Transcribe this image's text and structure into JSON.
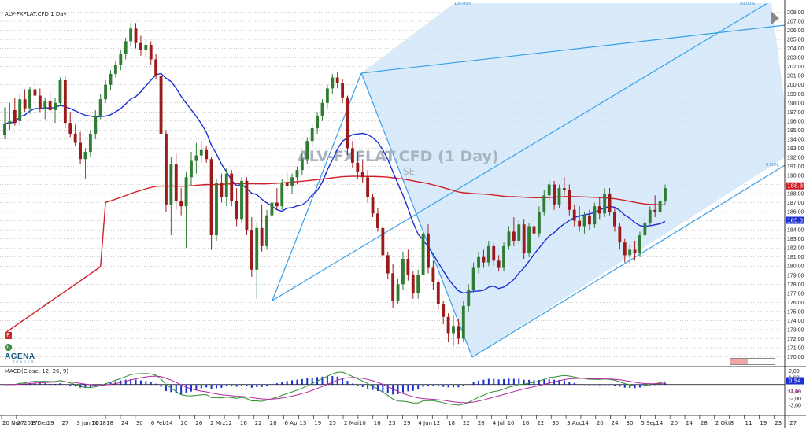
{
  "chart_data": {
    "type": "candlestick",
    "title": "ALV-FXFLAT.CFD 1 Day",
    "watermark": "ALV-FXFLAT.CFD (1 Day)",
    "watermark_sub": "SE",
    "ylim": [
      169,
      209
    ],
    "y_ticks": [
      170,
      171,
      172,
      173,
      174,
      175,
      176,
      177,
      178,
      179,
      180,
      181,
      182,
      183,
      184,
      185,
      186,
      187,
      188,
      189,
      190,
      191,
      192,
      193,
      194,
      195,
      196,
      197,
      198,
      199,
      200,
      201,
      202,
      203,
      204,
      205,
      206,
      207,
      208
    ],
    "x_tick_labels": [
      "20 Nov 2017",
      "27",
      "8 Dez",
      "19",
      "27",
      "3 Jan 2018",
      "10",
      "18",
      "24",
      "30",
      "6 Feb",
      "14",
      "20",
      "26",
      "2 Mrz",
      "12",
      "16",
      "22",
      "28",
      "6 Apr",
      "13",
      "19",
      "25",
      "2 Mai",
      "10",
      "16",
      "23",
      "29",
      "4 Jun",
      "12",
      "18",
      "22",
      "28",
      "4 Jul",
      "10",
      "16",
      "22",
      "30",
      "3 Aug",
      "14",
      "20",
      "24",
      "30",
      "5 Sep",
      "14",
      "20",
      "24",
      "28",
      "2 Okt",
      "8",
      "11",
      "19",
      "23",
      "27"
    ],
    "last_price_label": "188.85",
    "sma_label": "185.05",
    "candles": [
      {
        "o": 194.5,
        "h": 197.5,
        "l": 194.0,
        "c": 195.7
      },
      {
        "o": 195.7,
        "h": 198.0,
        "l": 195.0,
        "c": 196.0
      },
      {
        "o": 197.2,
        "h": 198.5,
        "l": 195.5,
        "c": 195.8
      },
      {
        "o": 196.0,
        "h": 199.0,
        "l": 195.5,
        "c": 198.4
      },
      {
        "o": 198.4,
        "h": 199.5,
        "l": 197.0,
        "c": 197.4
      },
      {
        "o": 197.4,
        "h": 199.8,
        "l": 196.8,
        "c": 199.5
      },
      {
        "o": 199.5,
        "h": 200.5,
        "l": 198.0,
        "c": 198.8
      },
      {
        "o": 198.8,
        "h": 199.6,
        "l": 197.0,
        "c": 197.3
      },
      {
        "o": 197.3,
        "h": 198.6,
        "l": 196.2,
        "c": 198.2
      },
      {
        "o": 198.2,
        "h": 199.2,
        "l": 196.8,
        "c": 197.2
      },
      {
        "o": 197.2,
        "h": 198.5,
        "l": 195.8,
        "c": 198.0
      },
      {
        "o": 198.0,
        "h": 200.8,
        "l": 197.6,
        "c": 200.5
      },
      {
        "o": 200.5,
        "h": 201.0,
        "l": 195.2,
        "c": 195.8
      },
      {
        "o": 195.8,
        "h": 197.0,
        "l": 194.2,
        "c": 194.6
      },
      {
        "o": 194.6,
        "h": 195.6,
        "l": 193.2,
        "c": 193.6
      },
      {
        "o": 193.6,
        "h": 194.8,
        "l": 191.2,
        "c": 191.8
      },
      {
        "o": 191.8,
        "h": 193.0,
        "l": 189.6,
        "c": 192.6
      },
      {
        "o": 192.6,
        "h": 195.0,
        "l": 192.0,
        "c": 194.6
      },
      {
        "o": 194.6,
        "h": 197.2,
        "l": 194.0,
        "c": 196.6
      },
      {
        "o": 196.6,
        "h": 199.0,
        "l": 196.2,
        "c": 198.4
      },
      {
        "o": 198.4,
        "h": 200.5,
        "l": 198.0,
        "c": 200.0
      },
      {
        "o": 200.0,
        "h": 201.6,
        "l": 199.4,
        "c": 201.2
      },
      {
        "o": 201.2,
        "h": 202.6,
        "l": 200.8,
        "c": 202.2
      },
      {
        "o": 202.2,
        "h": 203.8,
        "l": 201.6,
        "c": 203.4
      },
      {
        "o": 203.4,
        "h": 205.2,
        "l": 202.8,
        "c": 204.8
      },
      {
        "o": 204.8,
        "h": 206.8,
        "l": 204.2,
        "c": 206.2
      },
      {
        "o": 206.2,
        "h": 206.8,
        "l": 204.0,
        "c": 204.6
      },
      {
        "o": 204.6,
        "h": 205.4,
        "l": 203.2,
        "c": 203.8
      },
      {
        "o": 203.8,
        "h": 205.0,
        "l": 203.0,
        "c": 204.4
      },
      {
        "o": 204.4,
        "h": 204.8,
        "l": 202.2,
        "c": 202.8
      },
      {
        "o": 202.8,
        "h": 203.4,
        "l": 200.6,
        "c": 201.0
      },
      {
        "o": 201.0,
        "h": 201.6,
        "l": 194.0,
        "c": 194.6
      },
      {
        "o": 194.6,
        "h": 195.0,
        "l": 186.0,
        "c": 186.8
      },
      {
        "o": 186.8,
        "h": 192.0,
        "l": 183.4,
        "c": 191.2
      },
      {
        "o": 191.2,
        "h": 192.4,
        "l": 186.2,
        "c": 187.2
      },
      {
        "o": 187.2,
        "h": 188.6,
        "l": 185.6,
        "c": 186.6
      },
      {
        "o": 186.6,
        "h": 190.4,
        "l": 182.0,
        "c": 189.8
      },
      {
        "o": 189.8,
        "h": 192.6,
        "l": 188.8,
        "c": 191.6
      },
      {
        "o": 191.6,
        "h": 193.6,
        "l": 190.2,
        "c": 192.2
      },
      {
        "o": 192.2,
        "h": 193.8,
        "l": 191.4,
        "c": 192.8
      },
      {
        "o": 192.8,
        "h": 193.2,
        "l": 191.4,
        "c": 191.8
      },
      {
        "o": 191.8,
        "h": 192.0,
        "l": 181.8,
        "c": 183.4
      },
      {
        "o": 183.4,
        "h": 189.6,
        "l": 182.8,
        "c": 189.2
      },
      {
        "o": 189.2,
        "h": 190.2,
        "l": 187.0,
        "c": 187.6
      },
      {
        "o": 187.6,
        "h": 190.8,
        "l": 186.6,
        "c": 190.2
      },
      {
        "o": 190.2,
        "h": 190.6,
        "l": 186.6,
        "c": 187.2
      },
      {
        "o": 187.2,
        "h": 188.6,
        "l": 184.4,
        "c": 185.2
      },
      {
        "o": 185.2,
        "h": 189.8,
        "l": 184.8,
        "c": 189.4
      },
      {
        "o": 189.4,
        "h": 189.8,
        "l": 183.4,
        "c": 184.0
      },
      {
        "o": 184.0,
        "h": 185.4,
        "l": 178.8,
        "c": 179.6
      },
      {
        "o": 179.6,
        "h": 184.8,
        "l": 176.4,
        "c": 184.2
      },
      {
        "o": 184.2,
        "h": 186.8,
        "l": 181.6,
        "c": 182.2
      },
      {
        "o": 182.2,
        "h": 186.2,
        "l": 181.8,
        "c": 185.6
      },
      {
        "o": 185.6,
        "h": 187.6,
        "l": 185.0,
        "c": 187.0
      },
      {
        "o": 187.0,
        "h": 188.6,
        "l": 186.2,
        "c": 186.6
      },
      {
        "o": 186.6,
        "h": 189.6,
        "l": 186.2,
        "c": 189.2
      },
      {
        "o": 189.2,
        "h": 190.4,
        "l": 188.4,
        "c": 188.8
      },
      {
        "o": 188.8,
        "h": 190.2,
        "l": 188.0,
        "c": 189.8
      },
      {
        "o": 189.8,
        "h": 191.0,
        "l": 189.0,
        "c": 190.6
      },
      {
        "o": 190.6,
        "h": 192.4,
        "l": 190.0,
        "c": 191.8
      },
      {
        "o": 191.8,
        "h": 194.2,
        "l": 191.2,
        "c": 193.8
      },
      {
        "o": 193.8,
        "h": 195.6,
        "l": 193.2,
        "c": 195.2
      },
      {
        "o": 195.2,
        "h": 197.0,
        "l": 194.6,
        "c": 196.6
      },
      {
        "o": 196.6,
        "h": 198.4,
        "l": 196.0,
        "c": 198.0
      },
      {
        "o": 198.0,
        "h": 200.0,
        "l": 197.4,
        "c": 199.6
      },
      {
        "o": 199.6,
        "h": 201.2,
        "l": 199.0,
        "c": 200.8
      },
      {
        "o": 200.8,
        "h": 201.4,
        "l": 199.6,
        "c": 200.2
      },
      {
        "o": 200.2,
        "h": 200.6,
        "l": 198.0,
        "c": 198.6
      },
      {
        "o": 198.6,
        "h": 198.8,
        "l": 192.2,
        "c": 193.0
      },
      {
        "o": 193.0,
        "h": 193.8,
        "l": 190.8,
        "c": 191.4
      },
      {
        "o": 191.4,
        "h": 192.6,
        "l": 189.6,
        "c": 190.4
      },
      {
        "o": 190.4,
        "h": 191.8,
        "l": 189.2,
        "c": 189.8
      },
      {
        "o": 189.8,
        "h": 190.6,
        "l": 187.0,
        "c": 187.6
      },
      {
        "o": 187.6,
        "h": 188.0,
        "l": 185.4,
        "c": 185.8
      },
      {
        "o": 185.8,
        "h": 186.4,
        "l": 183.8,
        "c": 184.2
      },
      {
        "o": 184.2,
        "h": 184.6,
        "l": 180.6,
        "c": 181.2
      },
      {
        "o": 181.2,
        "h": 181.6,
        "l": 178.6,
        "c": 179.2
      },
      {
        "o": 179.2,
        "h": 180.2,
        "l": 175.4,
        "c": 176.2
      },
      {
        "o": 176.2,
        "h": 178.6,
        "l": 175.8,
        "c": 178.0
      },
      {
        "o": 178.0,
        "h": 181.6,
        "l": 177.4,
        "c": 180.8
      },
      {
        "o": 180.8,
        "h": 181.8,
        "l": 178.4,
        "c": 179.0
      },
      {
        "o": 179.0,
        "h": 179.4,
        "l": 176.4,
        "c": 177.0
      },
      {
        "o": 177.0,
        "h": 179.6,
        "l": 176.4,
        "c": 179.0
      },
      {
        "o": 179.0,
        "h": 184.0,
        "l": 178.2,
        "c": 183.6
      },
      {
        "o": 183.6,
        "h": 184.6,
        "l": 179.2,
        "c": 179.8
      },
      {
        "o": 179.8,
        "h": 180.6,
        "l": 177.4,
        "c": 178.2
      },
      {
        "o": 178.2,
        "h": 178.6,
        "l": 175.2,
        "c": 175.8
      },
      {
        "o": 175.8,
        "h": 176.2,
        "l": 173.6,
        "c": 174.4
      },
      {
        "o": 174.4,
        "h": 174.8,
        "l": 171.6,
        "c": 172.6
      },
      {
        "o": 172.6,
        "h": 174.6,
        "l": 171.2,
        "c": 173.4
      },
      {
        "o": 173.4,
        "h": 174.2,
        "l": 171.4,
        "c": 172.0
      },
      {
        "o": 172.0,
        "h": 176.2,
        "l": 171.6,
        "c": 175.6
      },
      {
        "o": 175.6,
        "h": 178.0,
        "l": 175.0,
        "c": 177.4
      },
      {
        "o": 177.4,
        "h": 180.4,
        "l": 177.0,
        "c": 179.8
      },
      {
        "o": 179.8,
        "h": 181.6,
        "l": 179.2,
        "c": 181.0
      },
      {
        "o": 181.0,
        "h": 181.8,
        "l": 179.8,
        "c": 180.4
      },
      {
        "o": 180.4,
        "h": 182.8,
        "l": 180.0,
        "c": 182.2
      },
      {
        "o": 182.2,
        "h": 182.6,
        "l": 180.0,
        "c": 180.6
      },
      {
        "o": 180.6,
        "h": 181.2,
        "l": 179.4,
        "c": 179.8
      },
      {
        "o": 179.8,
        "h": 182.6,
        "l": 179.4,
        "c": 182.2
      },
      {
        "o": 182.2,
        "h": 184.4,
        "l": 181.8,
        "c": 183.8
      },
      {
        "o": 183.8,
        "h": 185.4,
        "l": 182.2,
        "c": 182.8
      },
      {
        "o": 182.8,
        "h": 185.0,
        "l": 182.4,
        "c": 184.6
      },
      {
        "o": 184.6,
        "h": 185.2,
        "l": 180.8,
        "c": 181.4
      },
      {
        "o": 181.4,
        "h": 184.8,
        "l": 181.0,
        "c": 184.4
      },
      {
        "o": 184.4,
        "h": 185.6,
        "l": 183.0,
        "c": 183.6
      },
      {
        "o": 183.6,
        "h": 186.6,
        "l": 183.2,
        "c": 186.0
      },
      {
        "o": 186.0,
        "h": 188.4,
        "l": 185.6,
        "c": 187.8
      },
      {
        "o": 187.8,
        "h": 189.6,
        "l": 187.2,
        "c": 189.0
      },
      {
        "o": 189.0,
        "h": 189.4,
        "l": 186.2,
        "c": 186.8
      },
      {
        "o": 186.8,
        "h": 189.0,
        "l": 186.4,
        "c": 188.6
      },
      {
        "o": 188.6,
        "h": 189.8,
        "l": 187.8,
        "c": 188.4
      },
      {
        "o": 188.4,
        "h": 189.0,
        "l": 185.6,
        "c": 186.2
      },
      {
        "o": 186.2,
        "h": 186.8,
        "l": 184.4,
        "c": 185.0
      },
      {
        "o": 185.0,
        "h": 186.6,
        "l": 183.8,
        "c": 184.4
      },
      {
        "o": 184.4,
        "h": 186.0,
        "l": 183.6,
        "c": 185.6
      },
      {
        "o": 185.6,
        "h": 186.2,
        "l": 184.0,
        "c": 184.6
      },
      {
        "o": 184.6,
        "h": 187.0,
        "l": 184.2,
        "c": 186.6
      },
      {
        "o": 186.6,
        "h": 187.6,
        "l": 185.2,
        "c": 185.8
      },
      {
        "o": 185.8,
        "h": 188.6,
        "l": 185.4,
        "c": 188.0
      },
      {
        "o": 188.0,
        "h": 188.6,
        "l": 185.6,
        "c": 186.0
      },
      {
        "o": 186.0,
        "h": 186.4,
        "l": 183.8,
        "c": 184.4
      },
      {
        "o": 184.4,
        "h": 184.8,
        "l": 181.8,
        "c": 182.6
      },
      {
        "o": 182.6,
        "h": 183.0,
        "l": 180.4,
        "c": 181.2
      },
      {
        "o": 181.2,
        "h": 182.4,
        "l": 180.2,
        "c": 181.8
      },
      {
        "o": 181.8,
        "h": 182.8,
        "l": 180.6,
        "c": 181.4
      },
      {
        "o": 181.4,
        "h": 183.8,
        "l": 181.0,
        "c": 183.4
      },
      {
        "o": 183.4,
        "h": 185.4,
        "l": 183.0,
        "c": 184.8
      },
      {
        "o": 184.8,
        "h": 186.6,
        "l": 184.4,
        "c": 186.2
      },
      {
        "o": 186.2,
        "h": 187.8,
        "l": 185.4,
        "c": 186.0
      },
      {
        "o": 186.0,
        "h": 187.6,
        "l": 185.6,
        "c": 187.2
      },
      {
        "o": 187.2,
        "h": 189.0,
        "l": 186.8,
        "c": 188.6
      }
    ],
    "sma_fast_name": "",
    "sma_slow_name": "",
    "macd": {
      "title": "MACD(Close, 12, 26, 9)",
      "values_label": [
        "0.54",
        "-0.14"
      ],
      "y_ticks": [
        "2,00",
        "1,00",
        "-1,00",
        "-2,00",
        "-3,00"
      ]
    },
    "fib_levels": [
      "100.00%",
      "50.00%",
      "0.00%"
    ]
  },
  "logo": {
    "text": "AGENA",
    "sub": "TRADER"
  },
  "sidebar_badges": [
    "R",
    "R"
  ],
  "colors": {
    "bull": "#2e7d32",
    "bear": "#9b1b1b",
    "sma_fast": "#1a2fd4",
    "sma_slow": "#d01f26",
    "channel": "#3aa0e6",
    "fill": "#cfe6f9"
  }
}
